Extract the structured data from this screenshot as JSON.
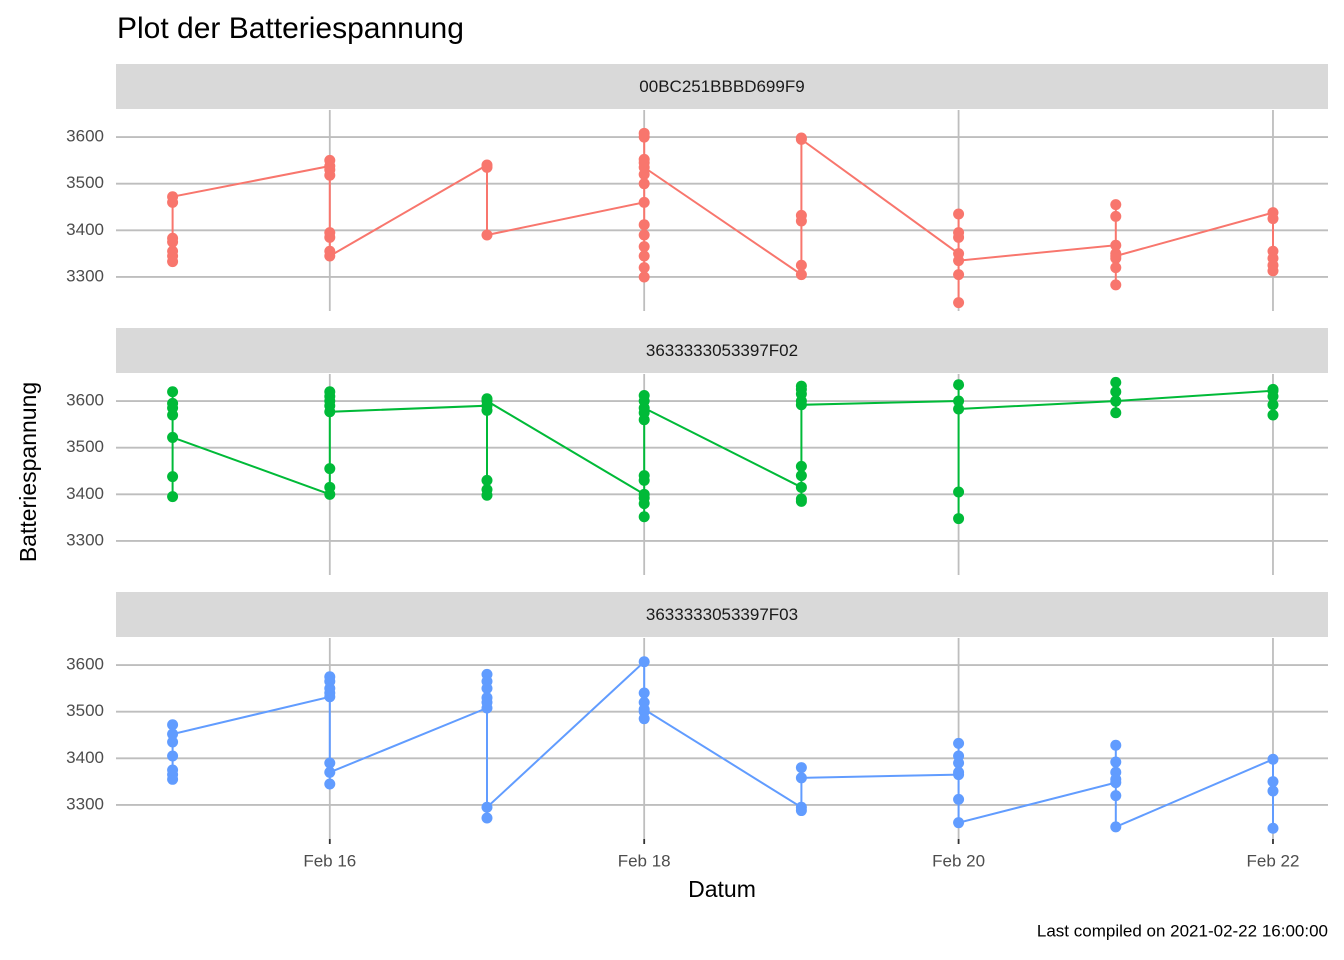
{
  "chart_data": {
    "type": "line",
    "title": "Plot der Batteriespannung",
    "xlabel": "Datum",
    "ylabel": "Batteriespannung",
    "caption": "Last compiled on 2021-02-22 16:00:00",
    "grid": true,
    "xlim": [
      14.64,
      22.35
    ],
    "ylim": [
      3227,
      3658
    ],
    "xticks": [
      {
        "value": 16,
        "label": "Feb 16"
      },
      {
        "value": 18,
        "label": "Feb 18"
      },
      {
        "value": 20,
        "label": "Feb 20"
      },
      {
        "value": 22,
        "label": "Feb 22"
      }
    ],
    "yticks": [
      3300,
      3400,
      3500,
      3600
    ],
    "series": [
      {
        "name": "00BC251BBBD699F9",
        "color": "#F8766D",
        "x": [
          15,
          15,
          15,
          15,
          15,
          15,
          15,
          16,
          16,
          16,
          16,
          16,
          16,
          16,
          16,
          17,
          17,
          17,
          18,
          18,
          18,
          18,
          18,
          18,
          18,
          18,
          18,
          18,
          18,
          18,
          18,
          18,
          19,
          19,
          19,
          19,
          19,
          19,
          20,
          20,
          20,
          20,
          20,
          20,
          20,
          21,
          21,
          21,
          21,
          21,
          21,
          21,
          21,
          22,
          22,
          22,
          22,
          22,
          22
        ],
        "values": [
          3333,
          3345,
          3355,
          3375,
          3383,
          3460,
          3472,
          3538,
          3550,
          3530,
          3518,
          3395,
          3385,
          3355,
          3345,
          3540,
          3535,
          3390,
          3460,
          3300,
          3320,
          3345,
          3365,
          3390,
          3412,
          3500,
          3520,
          3545,
          3552,
          3600,
          3608,
          3535,
          3305,
          3325,
          3420,
          3432,
          3598,
          3595,
          3350,
          3435,
          3395,
          3385,
          3305,
          3245,
          3335,
          3368,
          3455,
          3430,
          3350,
          3340,
          3320,
          3283,
          3345,
          3438,
          3425,
          3355,
          3340,
          3325,
          3313
        ]
      },
      {
        "name": "3633333053397F02",
        "color": "#00BA38",
        "x": [
          15,
          15,
          15,
          15,
          15,
          15,
          15,
          16,
          16,
          16,
          16,
          16,
          16,
          16,
          16,
          17,
          17,
          17,
          17,
          17,
          17,
          17,
          18,
          18,
          18,
          18,
          18,
          18,
          18,
          18,
          18,
          18,
          18,
          19,
          19,
          19,
          19,
          19,
          19,
          19,
          19,
          19,
          19,
          20,
          20,
          20,
          20,
          20,
          21,
          21,
          21,
          21,
          21,
          22,
          22,
          22,
          22,
          22
        ],
        "values": [
          3395,
          3438,
          3570,
          3585,
          3595,
          3620,
          3522,
          3400,
          3415,
          3455,
          3600,
          3610,
          3620,
          3590,
          3577,
          3590,
          3430,
          3410,
          3398,
          3580,
          3605,
          3600,
          3400,
          3352,
          3380,
          3392,
          3430,
          3440,
          3560,
          3575,
          3600,
          3612,
          3585,
          3415,
          3385,
          3390,
          3440,
          3460,
          3600,
          3615,
          3625,
          3632,
          3592,
          3600,
          3635,
          3348,
          3405,
          3583,
          3600,
          3640,
          3620,
          3575,
          3600,
          3622,
          3625,
          3610,
          3592,
          3570
        ]
      },
      {
        "name": "3633333053397F03",
        "color": "#619CFF",
        "x": [
          15,
          15,
          15,
          15,
          15,
          15,
          15,
          16,
          16,
          16,
          16,
          16,
          16,
          16,
          16,
          17,
          17,
          17,
          17,
          17,
          17,
          17,
          17,
          18,
          18,
          18,
          18,
          18,
          18,
          19,
          19,
          19,
          19,
          20,
          20,
          20,
          20,
          20,
          20,
          20,
          21,
          21,
          21,
          21,
          21,
          21,
          21,
          22,
          22,
          22,
          22
        ],
        "values": [
          3355,
          3365,
          3375,
          3405,
          3435,
          3472,
          3452,
          3532,
          3575,
          3565,
          3550,
          3540,
          3390,
          3345,
          3370,
          3508,
          3580,
          3565,
          3550,
          3530,
          3520,
          3272,
          3295,
          3607,
          3540,
          3520,
          3500,
          3485,
          3505,
          3295,
          3288,
          3380,
          3358,
          3365,
          3432,
          3405,
          3390,
          3370,
          3312,
          3262,
          3348,
          3428,
          3392,
          3370,
          3355,
          3320,
          3253,
          3398,
          3350,
          3330,
          3250
        ]
      }
    ]
  }
}
